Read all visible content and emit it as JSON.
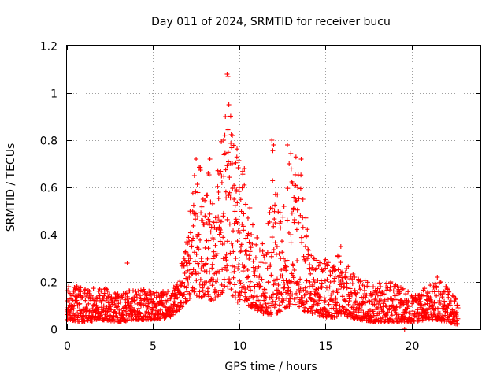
{
  "chart_data": {
    "type": "scatter",
    "title": "Day 011 of 2024, SRMTID for receiver bucu",
    "xlabel": "GPS time / hours",
    "ylabel": "SRMTID / TECUs",
    "xlim": [
      0,
      24
    ],
    "ylim": [
      0,
      1.2
    ],
    "xticks": [
      0,
      5,
      10,
      15,
      20
    ],
    "yticks": [
      0,
      0.2,
      0.4,
      0.6,
      0.8,
      1,
      1.2
    ],
    "xtick_labels": [
      "0",
      "5",
      "10",
      "15",
      "20"
    ],
    "ytick_labels": [
      "0",
      "0.2",
      "0.4",
      "0.6",
      "0.8",
      "1",
      "1.2"
    ],
    "grid": true,
    "marker": "plus",
    "series": [
      {
        "name": "bucu",
        "color": "#ff0000",
        "envelope": {
          "description": "approximate upper and lower bounds of the point cloud, hours vs TECU",
          "x": [
            0,
            1,
            2,
            3,
            4,
            5,
            6,
            6.5,
            7,
            7.5,
            8,
            8.5,
            9,
            9.3,
            9.6,
            10,
            10.5,
            11,
            11.5,
            12,
            12.5,
            13,
            13.5,
            14,
            14.5,
            15,
            15.5,
            16,
            16.5,
            17,
            18,
            19,
            20,
            21,
            21.5,
            22,
            22.7
          ],
          "upper": [
            0.2,
            0.17,
            0.18,
            0.15,
            0.18,
            0.16,
            0.17,
            0.22,
            0.42,
            0.7,
            0.73,
            0.65,
            0.95,
            1.08,
            0.9,
            0.72,
            0.6,
            0.4,
            0.35,
            0.8,
            0.45,
            0.78,
            0.72,
            0.4,
            0.32,
            0.3,
            0.28,
            0.35,
            0.25,
            0.22,
            0.2,
            0.2,
            0.15,
            0.18,
            0.22,
            0.18,
            0.12
          ],
          "lower": [
            0.04,
            0.03,
            0.04,
            0.03,
            0.04,
            0.04,
            0.05,
            0.08,
            0.12,
            0.14,
            0.13,
            0.12,
            0.15,
            0.18,
            0.14,
            0.1,
            0.1,
            0.08,
            0.06,
            0.06,
            0.08,
            0.1,
            0.08,
            0.07,
            0.06,
            0.05,
            0.05,
            0.06,
            0.05,
            0.04,
            0.03,
            0.03,
            0.03,
            0.04,
            0.04,
            0.03,
            0.02
          ]
        },
        "points": [
          [
            0.05,
            0.12
          ],
          [
            0.1,
            0.18
          ],
          [
            0.2,
            0.08
          ],
          [
            0.3,
            0.15
          ],
          [
            0.45,
            0.06
          ],
          [
            0.6,
            0.11
          ],
          [
            0.8,
            0.14
          ],
          [
            0.9,
            0.05
          ],
          [
            1.1,
            0.09
          ],
          [
            1.3,
            0.16
          ],
          [
            1.5,
            0.07
          ],
          [
            1.7,
            0.12
          ],
          [
            1.9,
            0.17
          ],
          [
            2.1,
            0.08
          ],
          [
            2.3,
            0.13
          ],
          [
            2.6,
            0.05
          ],
          [
            2.8,
            0.1
          ],
          [
            3.0,
            0.14
          ],
          [
            3.2,
            0.07
          ],
          [
            3.4,
            0.15
          ],
          [
            3.5,
            0.28
          ],
          [
            3.7,
            0.08
          ],
          [
            3.9,
            0.12
          ],
          [
            4.1,
            0.06
          ],
          [
            4.3,
            0.1
          ],
          [
            4.5,
            0.16
          ],
          [
            4.7,
            0.09
          ],
          [
            4.9,
            0.13
          ],
          [
            5.1,
            0.06
          ],
          [
            5.3,
            0.11
          ],
          [
            5.5,
            0.15
          ],
          [
            5.8,
            0.08
          ],
          [
            6.0,
            0.13
          ],
          [
            6.2,
            0.1
          ],
          [
            6.4,
            0.19
          ],
          [
            6.6,
            0.15
          ],
          [
            6.8,
            0.3
          ],
          [
            7.0,
            0.36
          ],
          [
            7.1,
            0.22
          ],
          [
            7.3,
            0.5
          ],
          [
            7.4,
            0.65
          ],
          [
            7.5,
            0.72
          ],
          [
            7.6,
            0.4
          ],
          [
            7.8,
            0.3
          ],
          [
            7.9,
            0.55
          ],
          [
            8.0,
            0.2
          ],
          [
            8.1,
            0.45
          ],
          [
            8.2,
            0.66
          ],
          [
            8.3,
            0.72
          ],
          [
            8.5,
            0.38
          ],
          [
            8.6,
            0.16
          ],
          [
            8.8,
            0.58
          ],
          [
            8.9,
            0.42
          ],
          [
            9.0,
            0.62
          ],
          [
            9.1,
            0.8
          ],
          [
            9.2,
            0.9
          ],
          [
            9.3,
            1.08
          ],
          [
            9.35,
            1.07
          ],
          [
            9.4,
            0.95
          ],
          [
            9.5,
            0.7
          ],
          [
            9.6,
            0.82
          ],
          [
            9.7,
            0.55
          ],
          [
            9.8,
            0.3
          ],
          [
            9.9,
            0.45
          ],
          [
            10.0,
            0.6
          ],
          [
            10.1,
            0.35
          ],
          [
            10.3,
            0.68
          ],
          [
            10.5,
            0.25
          ],
          [
            10.7,
            0.4
          ],
          [
            10.9,
            0.18
          ],
          [
            11.1,
            0.22
          ],
          [
            11.3,
            0.14
          ],
          [
            11.5,
            0.28
          ],
          [
            11.7,
            0.2
          ],
          [
            11.9,
            0.8
          ],
          [
            12.0,
            0.78
          ],
          [
            12.1,
            0.45
          ],
          [
            12.2,
            0.35
          ],
          [
            12.4,
            0.3
          ],
          [
            12.6,
            0.52
          ],
          [
            12.8,
            0.78
          ],
          [
            12.9,
            0.7
          ],
          [
            13.0,
            0.4
          ],
          [
            13.2,
            0.25
          ],
          [
            13.4,
            0.6
          ],
          [
            13.6,
            0.72
          ],
          [
            13.7,
            0.55
          ],
          [
            13.9,
            0.3
          ],
          [
            14.1,
            0.2
          ],
          [
            14.3,
            0.25
          ],
          [
            14.5,
            0.15
          ],
          [
            14.8,
            0.18
          ],
          [
            15.0,
            0.12
          ],
          [
            15.3,
            0.2
          ],
          [
            15.6,
            0.25
          ],
          [
            15.9,
            0.35
          ],
          [
            16.1,
            0.18
          ],
          [
            16.4,
            0.12
          ],
          [
            16.7,
            0.22
          ],
          [
            17.0,
            0.1
          ],
          [
            17.3,
            0.15
          ],
          [
            17.6,
            0.08
          ],
          [
            17.9,
            0.13
          ],
          [
            18.2,
            0.18
          ],
          [
            18.5,
            0.1
          ],
          [
            18.8,
            0.2
          ],
          [
            19.1,
            0.07
          ],
          [
            19.4,
            0.12
          ],
          [
            19.6,
            0.0
          ],
          [
            19.8,
            0.1
          ],
          [
            20.1,
            0.06
          ],
          [
            20.4,
            0.11
          ],
          [
            20.7,
            0.08
          ],
          [
            21.0,
            0.13
          ],
          [
            21.3,
            0.18
          ],
          [
            21.5,
            0.22
          ],
          [
            21.7,
            0.2
          ],
          [
            21.9,
            0.1
          ],
          [
            22.1,
            0.07
          ],
          [
            22.3,
            0.12
          ],
          [
            22.5,
            0.05
          ],
          [
            22.7,
            0.09
          ]
        ]
      }
    ]
  }
}
